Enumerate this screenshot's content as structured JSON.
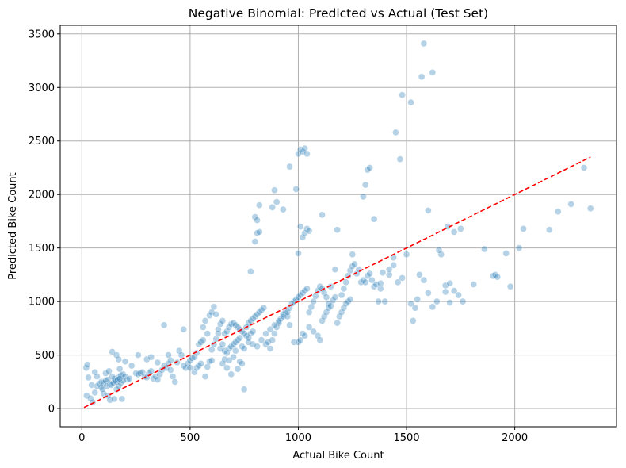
{
  "chart_data": {
    "type": "scatter",
    "title": "Negative Binomial: Predicted vs Actual (Test Set)",
    "xlabel": "Actual Bike Count",
    "ylabel": "Predicted Bike Count",
    "xlim": [
      -100,
      2470
    ],
    "ylim": [
      -170,
      3580
    ],
    "xticks": [
      0,
      500,
      1000,
      1500,
      2000
    ],
    "yticks": [
      0,
      500,
      1000,
      1500,
      2000,
      2500,
      3000,
      3500
    ],
    "grid": true,
    "colors": {
      "points": "#1f77b4",
      "reference_line": "#ff0000",
      "grid": "#b0b0b0"
    },
    "reference_line": {
      "style": "dashed",
      "x": [
        10,
        2350
      ],
      "y": [
        10,
        2350
      ]
    },
    "points": [
      [
        20,
        380
      ],
      [
        25,
        410
      ],
      [
        30,
        290
      ],
      [
        22,
        120
      ],
      [
        40,
        95
      ],
      [
        50,
        60
      ],
      [
        60,
        150
      ],
      [
        70,
        210
      ],
      [
        45,
        220
      ],
      [
        80,
        230
      ],
      [
        90,
        250
      ],
      [
        100,
        240
      ],
      [
        110,
        260
      ],
      [
        120,
        270
      ],
      [
        130,
        230
      ],
      [
        140,
        300
      ],
      [
        150,
        280
      ],
      [
        160,
        250
      ],
      [
        170,
        290
      ],
      [
        180,
        310
      ],
      [
        190,
        320
      ],
      [
        200,
        300
      ],
      [
        210,
        270
      ],
      [
        220,
        280
      ],
      [
        100,
        140
      ],
      [
        120,
        120
      ],
      [
        130,
        80
      ],
      [
        150,
        90
      ],
      [
        160,
        180
      ],
      [
        170,
        210
      ],
      [
        180,
        240
      ],
      [
        190,
        260
      ],
      [
        140,
        530
      ],
      [
        160,
        500
      ],
      [
        170,
        460
      ],
      [
        200,
        440
      ],
      [
        110,
        330
      ],
      [
        125,
        350
      ],
      [
        175,
        370
      ],
      [
        185,
        90
      ],
      [
        60,
        340
      ],
      [
        70,
        300
      ],
      [
        90,
        200
      ],
      [
        95,
        180
      ],
      [
        115,
        210
      ],
      [
        135,
        220
      ],
      [
        145,
        240
      ],
      [
        155,
        260
      ],
      [
        165,
        270
      ],
      [
        175,
        280
      ],
      [
        230,
        400
      ],
      [
        250,
        330
      ],
      [
        260,
        320
      ],
      [
        270,
        330
      ],
      [
        280,
        340
      ],
      [
        290,
        300
      ],
      [
        300,
        290
      ],
      [
        310,
        330
      ],
      [
        320,
        350
      ],
      [
        330,
        280
      ],
      [
        340,
        300
      ],
      [
        350,
        270
      ],
      [
        360,
        320
      ],
      [
        370,
        360
      ],
      [
        380,
        400
      ],
      [
        390,
        380
      ],
      [
        400,
        420
      ],
      [
        410,
        360
      ],
      [
        420,
        300
      ],
      [
        430,
        250
      ],
      [
        260,
        500
      ],
      [
        300,
        460
      ],
      [
        320,
        480
      ],
      [
        350,
        430
      ],
      [
        380,
        780
      ],
      [
        400,
        500
      ],
      [
        410,
        450
      ],
      [
        440,
        430
      ],
      [
        450,
        540
      ],
      [
        460,
        500
      ],
      [
        470,
        400
      ],
      [
        480,
        380
      ],
      [
        490,
        420
      ],
      [
        500,
        450
      ],
      [
        510,
        470
      ],
      [
        520,
        480
      ],
      [
        530,
        520
      ],
      [
        540,
        600
      ],
      [
        550,
        620
      ],
      [
        560,
        640
      ],
      [
        470,
        740
      ],
      [
        500,
        380
      ],
      [
        520,
        340
      ],
      [
        530,
        380
      ],
      [
        540,
        400
      ],
      [
        550,
        420
      ],
      [
        570,
        300
      ],
      [
        580,
        390
      ],
      [
        590,
        440
      ],
      [
        600,
        450
      ],
      [
        600,
        550
      ],
      [
        610,
        600
      ],
      [
        620,
        650
      ],
      [
        630,
        700
      ],
      [
        640,
        560
      ],
      [
        650,
        600
      ],
      [
        660,
        700
      ],
      [
        670,
        720
      ],
      [
        680,
        760
      ],
      [
        690,
        790
      ],
      [
        560,
        760
      ],
      [
        570,
        820
      ],
      [
        580,
        700
      ],
      [
        590,
        870
      ],
      [
        600,
        900
      ],
      [
        610,
        950
      ],
      [
        620,
        880
      ],
      [
        630,
        740
      ],
      [
        640,
        790
      ],
      [
        650,
        820
      ],
      [
        700,
        800
      ],
      [
        710,
        780
      ],
      [
        720,
        760
      ],
      [
        730,
        740
      ],
      [
        740,
        720
      ],
      [
        750,
        700
      ],
      [
        760,
        680
      ],
      [
        770,
        660
      ],
      [
        780,
        700
      ],
      [
        790,
        720
      ],
      [
        660,
        540
      ],
      [
        670,
        520
      ],
      [
        680,
        560
      ],
      [
        690,
        580
      ],
      [
        700,
        600
      ],
      [
        710,
        620
      ],
      [
        720,
        640
      ],
      [
        730,
        660
      ],
      [
        740,
        580
      ],
      [
        750,
        560
      ],
      [
        650,
        420
      ],
      [
        660,
        460
      ],
      [
        670,
        380
      ],
      [
        680,
        450
      ],
      [
        690,
        320
      ],
      [
        700,
        480
      ],
      [
        710,
        540
      ],
      [
        720,
        370
      ],
      [
        730,
        440
      ],
      [
        740,
        420
      ],
      [
        750,
        180
      ],
      [
        760,
        760
      ],
      [
        770,
        800
      ],
      [
        780,
        820
      ],
      [
        790,
        840
      ],
      [
        800,
        860
      ],
      [
        810,
        880
      ],
      [
        820,
        900
      ],
      [
        830,
        920
      ],
      [
        840,
        940
      ],
      [
        780,
        1280
      ],
      [
        800,
        1560
      ],
      [
        810,
        1640
      ],
      [
        820,
        1650
      ],
      [
        800,
        1790
      ],
      [
        810,
        1760
      ],
      [
        820,
        1900
      ],
      [
        880,
        1880
      ],
      [
        900,
        1930
      ],
      [
        890,
        2040
      ],
      [
        850,
        600
      ],
      [
        860,
        620
      ],
      [
        870,
        560
      ],
      [
        880,
        640
      ],
      [
        890,
        700
      ],
      [
        900,
        760
      ],
      [
        910,
        800
      ],
      [
        920,
        840
      ],
      [
        930,
        880
      ],
      [
        940,
        900
      ],
      [
        770,
        620
      ],
      [
        790,
        600
      ],
      [
        810,
        580
      ],
      [
        830,
        640
      ],
      [
        850,
        700
      ],
      [
        870,
        740
      ],
      [
        890,
        780
      ],
      [
        910,
        820
      ],
      [
        930,
        860
      ],
      [
        950,
        860
      ],
      [
        950,
        900
      ],
      [
        960,
        940
      ],
      [
        970,
        980
      ],
      [
        980,
        1000
      ],
      [
        990,
        1020
      ],
      [
        1000,
        1040
      ],
      [
        1010,
        1060
      ],
      [
        1020,
        1080
      ],
      [
        1030,
        1100
      ],
      [
        1040,
        1120
      ],
      [
        960,
        2260
      ],
      [
        990,
        2050
      ],
      [
        1000,
        2380
      ],
      [
        1010,
        2420
      ],
      [
        1020,
        2400
      ],
      [
        1030,
        2430
      ],
      [
        1040,
        2380
      ],
      [
        930,
        1860
      ],
      [
        960,
        780
      ],
      [
        980,
        620
      ],
      [
        1000,
        1450
      ],
      [
        1010,
        1700
      ],
      [
        1020,
        1600
      ],
      [
        1030,
        1640
      ],
      [
        1040,
        1680
      ],
      [
        1050,
        1660
      ],
      [
        1000,
        620
      ],
      [
        1010,
        640
      ],
      [
        1020,
        700
      ],
      [
        1030,
        680
      ],
      [
        1050,
        900
      ],
      [
        1060,
        950
      ],
      [
        1070,
        1000
      ],
      [
        1080,
        1050
      ],
      [
        1090,
        1100
      ],
      [
        1100,
        1140
      ],
      [
        1110,
        1120
      ],
      [
        1120,
        1080
      ],
      [
        1130,
        1040
      ],
      [
        1140,
        980
      ],
      [
        1050,
        760
      ],
      [
        1070,
        720
      ],
      [
        1090,
        680
      ],
      [
        1110,
        820
      ],
      [
        1120,
        860
      ],
      [
        1130,
        900
      ],
      [
        1140,
        940
      ],
      [
        1150,
        960
      ],
      [
        1160,
        1010
      ],
      [
        1170,
        1040
      ],
      [
        1110,
        1810
      ],
      [
        1180,
        1670
      ],
      [
        1100,
        640
      ],
      [
        1180,
        800
      ],
      [
        1190,
        860
      ],
      [
        1200,
        900
      ],
      [
        1210,
        940
      ],
      [
        1220,
        980
      ],
      [
        1230,
        1000
      ],
      [
        1240,
        1020
      ],
      [
        1200,
        1060
      ],
      [
        1210,
        1120
      ],
      [
        1220,
        1180
      ],
      [
        1230,
        1240
      ],
      [
        1240,
        1290
      ],
      [
        1250,
        1330
      ],
      [
        1260,
        1350
      ],
      [
        1270,
        1260
      ],
      [
        1280,
        1300
      ],
      [
        1290,
        1180
      ],
      [
        1250,
        1440
      ],
      [
        1300,
        1200
      ],
      [
        1310,
        1180
      ],
      [
        1320,
        1240
      ],
      [
        1330,
        1260
      ],
      [
        1340,
        1200
      ],
      [
        1350,
        1140
      ],
      [
        1360,
        1160
      ],
      [
        1370,
        1000
      ],
      [
        1380,
        1120
      ],
      [
        1300,
        1980
      ],
      [
        1310,
        2090
      ],
      [
        1320,
        2230
      ],
      [
        1330,
        2250
      ],
      [
        1350,
        1770
      ],
      [
        1420,
        1250
      ],
      [
        1440,
        1410
      ],
      [
        1450,
        2580
      ],
      [
        1470,
        2330
      ],
      [
        1480,
        2930
      ],
      [
        1400,
        1000
      ],
      [
        1420,
        1300
      ],
      [
        1440,
        1340
      ],
      [
        1460,
        1180
      ],
      [
        1480,
        1220
      ],
      [
        1500,
        1440
      ],
      [
        1520,
        980
      ],
      [
        1530,
        820
      ],
      [
        1540,
        940
      ],
      [
        1550,
        1020
      ],
      [
        1520,
        2860
      ],
      [
        1570,
        3100
      ],
      [
        1580,
        3410
      ],
      [
        1620,
        3140
      ],
      [
        1600,
        1850
      ],
      [
        1560,
        1250
      ],
      [
        1580,
        1200
      ],
      [
        1600,
        1080
      ],
      [
        1620,
        950
      ],
      [
        1640,
        1000
      ],
      [
        1660,
        1440
      ],
      [
        1680,
        1150
      ],
      [
        1700,
        1170
      ],
      [
        1720,
        1100
      ],
      [
        1740,
        1060
      ],
      [
        1760,
        1000
      ],
      [
        1680,
        1090
      ],
      [
        1700,
        990
      ],
      [
        1720,
        1650
      ],
      [
        1750,
        1680
      ],
      [
        1810,
        1160
      ],
      [
        1860,
        1490
      ],
      [
        1900,
        1240
      ],
      [
        1910,
        1250
      ],
      [
        1920,
        1230
      ],
      [
        1960,
        1450
      ],
      [
        1980,
        1140
      ],
      [
        2020,
        1500
      ],
      [
        2040,
        1680
      ],
      [
        2160,
        1670
      ],
      [
        2200,
        1840
      ],
      [
        2260,
        1910
      ],
      [
        2320,
        2250
      ],
      [
        2350,
        1870
      ],
      [
        1650,
        1480
      ],
      [
        1690,
        1700
      ],
      [
        1380,
        1170
      ],
      [
        1390,
        1270
      ],
      [
        1150,
        1140
      ],
      [
        1170,
        1300
      ]
    ]
  }
}
